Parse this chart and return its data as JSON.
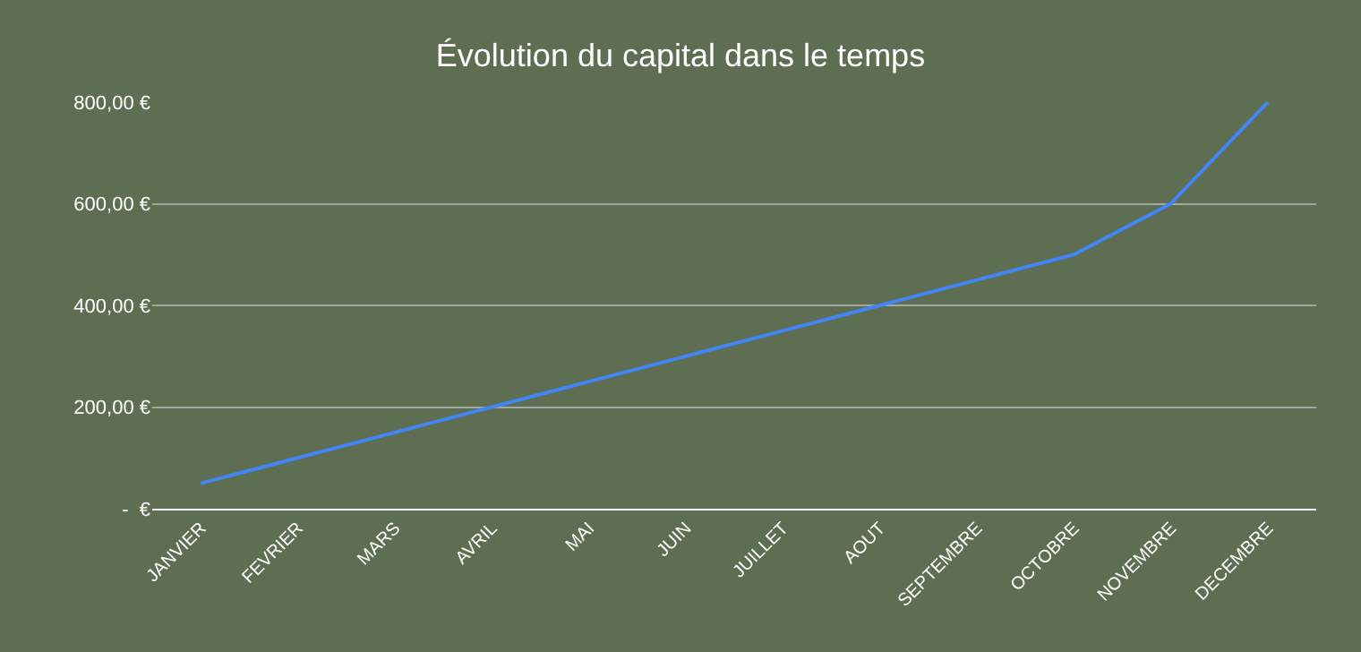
{
  "chart_data": {
    "type": "line",
    "title": "Évolution du capital dans le temps",
    "categories": [
      "JANVIER",
      "FEVRIER",
      "MARS",
      "AVRIL",
      "MAI",
      "JUIN",
      "JUILLET",
      "AOUT",
      "SEPTEMBRE",
      "OCTOBRE",
      "NOVEMBRE",
      "DECEMBRE"
    ],
    "series": [
      {
        "color": "#4285f4",
        "values": [
          50,
          100,
          150,
          200,
          250,
          300,
          350,
          400,
          450,
          500,
          600,
          800
        ]
      }
    ],
    "ylim": [
      0,
      800
    ],
    "yticks": [
      {
        "value": 0,
        "label": "-  €"
      },
      {
        "value": 200,
        "label": "200,00 €"
      },
      {
        "value": 400,
        "label": "400,00 €"
      },
      {
        "value": 600,
        "label": "600,00 €"
      },
      {
        "value": 800,
        "label": "800,00 €"
      }
    ],
    "grid": "y",
    "legend": false,
    "marker": "none",
    "line_style": "solid"
  }
}
